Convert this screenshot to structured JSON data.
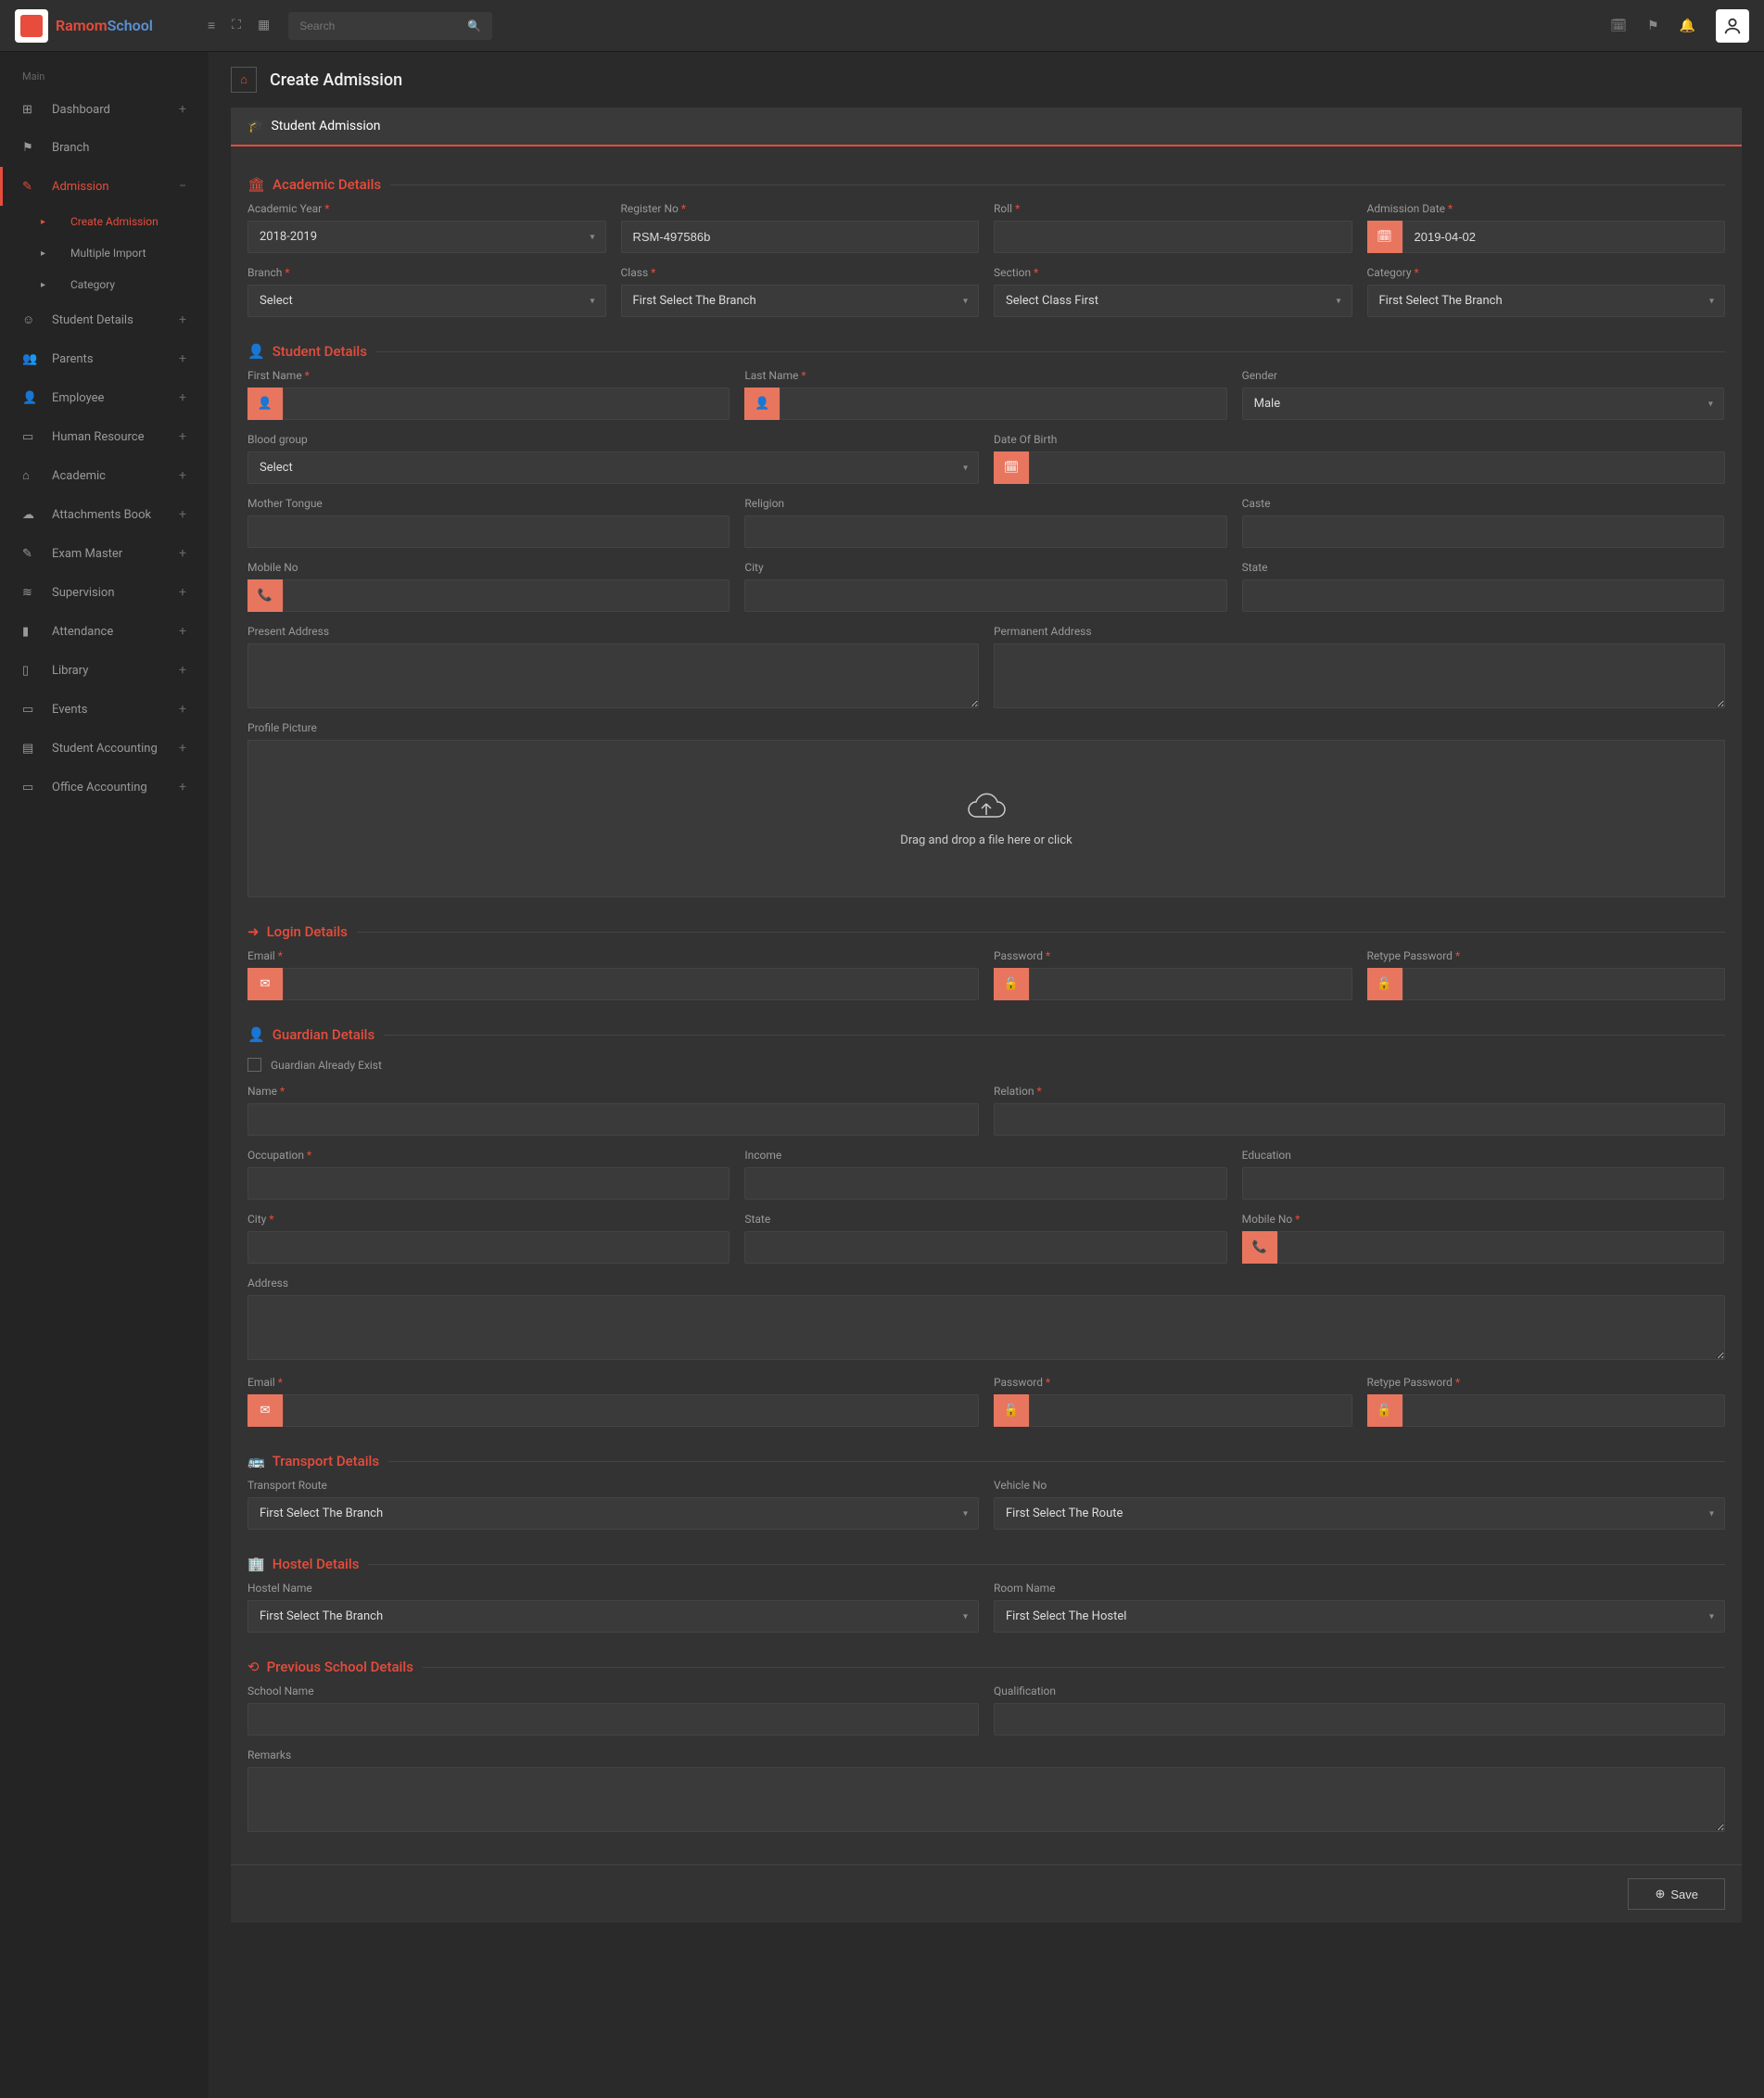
{
  "brand": {
    "part1": "Ramom",
    "part2": "School"
  },
  "search": {
    "placeholder": "Search"
  },
  "sidebar": {
    "heading": "Main",
    "items": [
      {
        "label": "Dashboard",
        "icon": "⊞",
        "expand": "+"
      },
      {
        "label": "Branch",
        "icon": "⚑"
      },
      {
        "label": "Admission",
        "icon": "✎",
        "expand": "−",
        "active": true,
        "sub": [
          {
            "label": "Create Admission",
            "active": true
          },
          {
            "label": "Multiple Import"
          },
          {
            "label": "Category"
          }
        ]
      },
      {
        "label": "Student Details",
        "icon": "☺",
        "expand": "+"
      },
      {
        "label": "Parents",
        "icon": "👥",
        "expand": "+"
      },
      {
        "label": "Employee",
        "icon": "👤",
        "expand": "+"
      },
      {
        "label": "Human Resource",
        "icon": "▭",
        "expand": "+"
      },
      {
        "label": "Academic",
        "icon": "⌂",
        "expand": "+"
      },
      {
        "label": "Attachments Book",
        "icon": "☁",
        "expand": "+"
      },
      {
        "label": "Exam Master",
        "icon": "✎",
        "expand": "+"
      },
      {
        "label": "Supervision",
        "icon": "≋",
        "expand": "+"
      },
      {
        "label": "Attendance",
        "icon": "▮",
        "expand": "+"
      },
      {
        "label": "Library",
        "icon": "▯",
        "expand": "+"
      },
      {
        "label": "Events",
        "icon": "▭",
        "expand": "+"
      },
      {
        "label": "Student Accounting",
        "icon": "▤",
        "expand": "+"
      },
      {
        "label": "Office Accounting",
        "icon": "▭",
        "expand": "+"
      }
    ]
  },
  "page": {
    "title": "Create Admission"
  },
  "panel": {
    "title": "Student Admission"
  },
  "sections": {
    "academic": "Academic Details",
    "student": "Student Details",
    "login": "Login Details",
    "guardian": "Guardian Details",
    "transport": "Transport Details",
    "hostel": "Hostel Details",
    "previous": "Previous School Details"
  },
  "fields": {
    "academicYear": {
      "label": "Academic Year",
      "value": "2018-2019"
    },
    "registerNo": {
      "label": "Register No",
      "value": "RSM-497586b"
    },
    "roll": {
      "label": "Roll"
    },
    "admissionDate": {
      "label": "Admission Date",
      "value": "2019-04-02"
    },
    "branch": {
      "label": "Branch",
      "value": "Select"
    },
    "class": {
      "label": "Class",
      "value": "First Select The Branch"
    },
    "section": {
      "label": "Section",
      "value": "Select Class First"
    },
    "category": {
      "label": "Category",
      "value": "First Select The Branch"
    },
    "firstName": {
      "label": "First Name"
    },
    "lastName": {
      "label": "Last Name"
    },
    "gender": {
      "label": "Gender",
      "value": "Male"
    },
    "bloodGroup": {
      "label": "Blood group",
      "value": "Select"
    },
    "dob": {
      "label": "Date Of Birth"
    },
    "motherTongue": {
      "label": "Mother Tongue"
    },
    "religion": {
      "label": "Religion"
    },
    "caste": {
      "label": "Caste"
    },
    "mobileNo": {
      "label": "Mobile No"
    },
    "city": {
      "label": "City"
    },
    "state": {
      "label": "State"
    },
    "presentAddress": {
      "label": "Present Address"
    },
    "permanentAddress": {
      "label": "Permanent Address"
    },
    "profilePicture": {
      "label": "Profile Picture",
      "dropzone": "Drag and drop a file here or click"
    },
    "email": {
      "label": "Email"
    },
    "password": {
      "label": "Password"
    },
    "retypePassword": {
      "label": "Retype Password"
    },
    "guardianExist": {
      "label": "Guardian Already Exist"
    },
    "gName": {
      "label": "Name"
    },
    "gRelation": {
      "label": "Relation"
    },
    "gOccupation": {
      "label": "Occupation"
    },
    "gIncome": {
      "label": "Income"
    },
    "gEducation": {
      "label": "Education"
    },
    "gCity": {
      "label": "City"
    },
    "gState": {
      "label": "State"
    },
    "gMobile": {
      "label": "Mobile No"
    },
    "gAddress": {
      "label": "Address"
    },
    "gEmail": {
      "label": "Email"
    },
    "gPassword": {
      "label": "Password"
    },
    "gRetypePassword": {
      "label": "Retype Password"
    },
    "transportRoute": {
      "label": "Transport Route",
      "value": "First Select The Branch"
    },
    "vehicleNo": {
      "label": "Vehicle No",
      "value": "First Select The Route"
    },
    "hostelName": {
      "label": "Hostel Name",
      "value": "First Select The Branch"
    },
    "roomName": {
      "label": "Room Name",
      "value": "First Select The Hostel"
    },
    "schoolName": {
      "label": "School Name"
    },
    "qualification": {
      "label": "Qualification"
    },
    "remarks": {
      "label": "Remarks"
    }
  },
  "buttons": {
    "save": "Save"
  },
  "colors": {
    "accent": "#e74c3c",
    "addon": "#e8765f",
    "bg": "#2a2a2a",
    "panel": "#333333",
    "input": "#3a3a3a",
    "text": "#b0b0b0"
  }
}
